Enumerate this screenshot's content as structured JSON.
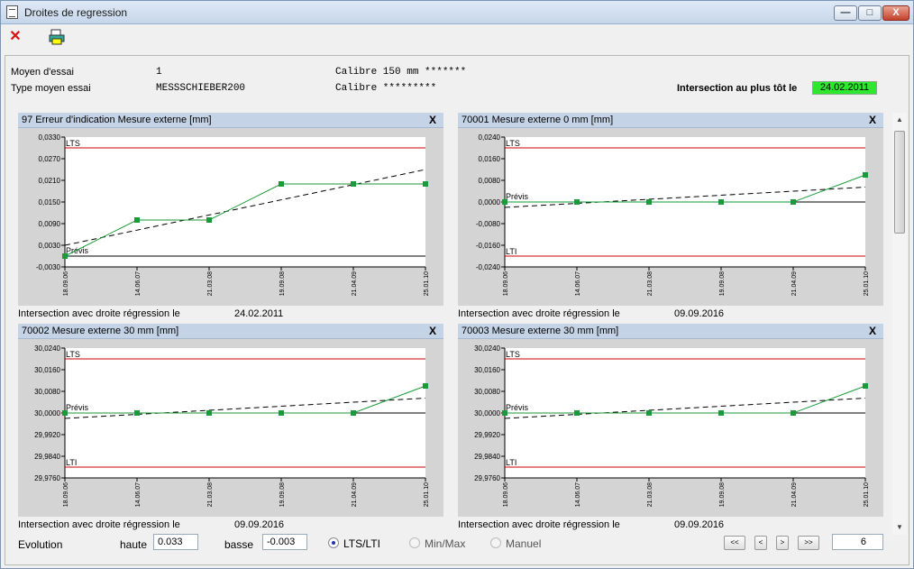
{
  "window": {
    "title": "Droites de regression",
    "min_label": "—",
    "max_label": "□",
    "close_label": "X"
  },
  "toolbar": {
    "delete_glyph": "✕",
    "print_glyph": "🖨"
  },
  "info": {
    "moyen_label": "Moyen d'essai",
    "moyen_value": "1",
    "type_label": "Type moyen essai",
    "type_value": "MESSSCHIEBER200",
    "calibre1": "Calibre 150 mm *******",
    "calibre2": "Calibre *********",
    "intersection_label": "Intersection au plus tôt le",
    "intersection_value": "24.02.2011",
    "intersection_color": "#2ee82e"
  },
  "chart_common": {
    "x_labels": [
      "18.09.06",
      "14.06.07",
      "21.03.08",
      "19.09.08",
      "21.04.09",
      "25.01.10"
    ],
    "close_label": "X",
    "footer_label": "Intersection avec droite régression le",
    "line_label_lts": "LTS",
    "line_label_lti": "LTI",
    "line_label_previs": "Prévis",
    "colors": {
      "limit": "#cc0000",
      "data": "#1a9a3a",
      "marker": "#1a9a3a",
      "trend": "#000000",
      "zero": "#000000"
    }
  },
  "chart_data": [
    {
      "type": "line",
      "title": "97 Erreur d'indication Mesure externe [mm]",
      "ylim": [
        -0.003,
        0.033
      ],
      "y_ticks": [
        "0,0330",
        "0,0270",
        "0,0210",
        "0,0150",
        "0,0090",
        "0,0030",
        "-0,0030"
      ],
      "lts": 0.03,
      "lti": null,
      "previs": 0.0,
      "series": [
        {
          "values": [
            0.0,
            0.01,
            0.01,
            0.02,
            0.02,
            0.02
          ]
        }
      ],
      "trend": [
        0.003,
        0.024
      ],
      "footer_date": "24.02.2011"
    },
    {
      "type": "line",
      "title": "70001 Mesure externe 0 mm [mm]",
      "ylim": [
        -0.024,
        0.024
      ],
      "y_ticks": [
        "0,0240",
        "0,0160",
        "0,0080",
        "0,0000",
        "-0,0080",
        "-0,0160",
        "-0,0240"
      ],
      "lts": 0.02,
      "lti": -0.02,
      "previs": 0.0,
      "series": [
        {
          "values": [
            0.0,
            0.0,
            0.0,
            0.0,
            0.0,
            0.01
          ]
        }
      ],
      "trend": [
        -0.002,
        0.0055
      ],
      "footer_date": "09.09.2016"
    },
    {
      "type": "line",
      "title": "70002 Mesure externe 30 mm [mm]",
      "ylim": [
        29.976,
        30.024
      ],
      "y_ticks": [
        "30,0240",
        "30,0160",
        "30,0080",
        "30,0000",
        "29,9920",
        "29,9840",
        "29,9760"
      ],
      "lts": 30.02,
      "lti": 29.98,
      "previs": 30.0,
      "series": [
        {
          "values": [
            30.0,
            30.0,
            30.0,
            30.0,
            30.0,
            30.01
          ]
        }
      ],
      "trend": [
        29.998,
        30.0055
      ],
      "footer_date": "09.09.2016"
    },
    {
      "type": "line",
      "title": "70003 Mesure externe 30 mm [mm]",
      "ylim": [
        29.976,
        30.024
      ],
      "y_ticks": [
        "30,0240",
        "30,0160",
        "30,0080",
        "30,0000",
        "29,9920",
        "29,9840",
        "29,9760"
      ],
      "lts": 30.02,
      "lti": 29.98,
      "previs": 30.0,
      "series": [
        {
          "values": [
            30.0,
            30.0,
            30.0,
            30.0,
            30.0,
            30.01
          ]
        }
      ],
      "trend": [
        29.998,
        30.0055
      ],
      "footer_date": "09.09.2016"
    }
  ],
  "bottom": {
    "evolution_label": "Evolution",
    "haute_label": "haute",
    "haute_value": "0.033",
    "basse_label": "basse",
    "basse_value": "-0.003",
    "radio_lts": "LTS/LTI",
    "radio_minmax": "Min/Max",
    "radio_manuel": "Manuel",
    "nav_first": "<<",
    "nav_prev": "<",
    "nav_next": ">",
    "nav_last": ">>",
    "page_value": "6"
  },
  "scrollbar": {
    "up": "▲",
    "down": "▼"
  }
}
